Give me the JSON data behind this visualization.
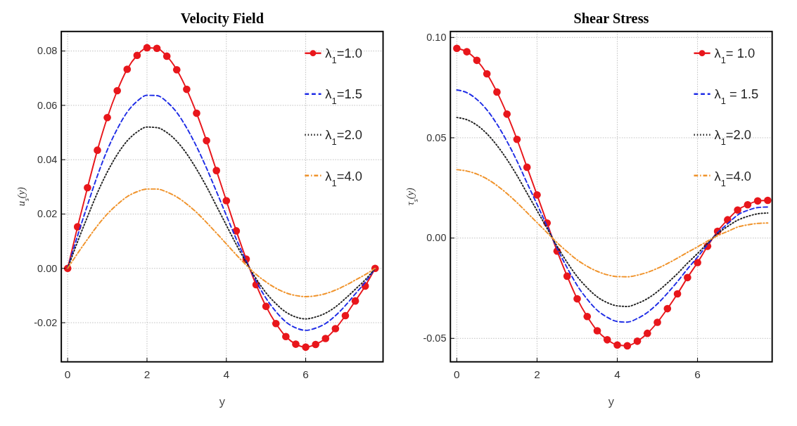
{
  "chart_data": [
    {
      "type": "line",
      "title": "Velocity Field",
      "xlabel": "y",
      "ylabel": "u$_{s}$(y)",
      "xlim": [
        -0.16,
        7.95
      ],
      "ylim": [
        -0.0344,
        0.0872
      ],
      "xticks": [
        0,
        2,
        4,
        6
      ],
      "yticks": [
        {
          "value": -0.02,
          "label": "-0.02"
        },
        {
          "value": 0,
          "label": "0.00"
        },
        {
          "value": 0.02,
          "label": "0.02"
        },
        {
          "value": 0.04,
          "label": "0.04"
        },
        {
          "value": 0.06,
          "label": "0.06"
        },
        {
          "value": 0.08,
          "label": "0.08"
        }
      ],
      "grid": true,
      "legend": "top right",
      "x": [
        0,
        0.25,
        0.5,
        0.75,
        1,
        1.25,
        1.5,
        1.75,
        2,
        2.25,
        2.5,
        2.75,
        3,
        3.25,
        3.5,
        3.75,
        4,
        4.25,
        4.5,
        4.75,
        5,
        5.25,
        5.5,
        5.75,
        6,
        6.25,
        6.5,
        6.75,
        7,
        7.25,
        7.5,
        7.75
      ],
      "series": [
        {
          "name": "λ$_{1}$=1.0",
          "color": "#e8161b",
          "marker": "circle",
          "line_style": "solid",
          "values": [
            0,
            0.0153,
            0.0297,
            0.0435,
            0.0555,
            0.0654,
            0.0733,
            0.0784,
            0.0812,
            0.081,
            0.0781,
            0.0731,
            0.0659,
            0.0571,
            0.047,
            0.036,
            0.0249,
            0.0138,
            0.0034,
            -0.006,
            -0.014,
            -0.0203,
            -0.0251,
            -0.0279,
            -0.029,
            -0.028,
            -0.0258,
            -0.0222,
            -0.0174,
            -0.012,
            -0.0065,
            0
          ]
        },
        {
          "name": "λ$_{1}$=1.5",
          "color": "#1f2de6",
          "marker": "none",
          "line_style": "dashed",
          "values": [
            0,
            0.012,
            0.0233,
            0.0341,
            0.0436,
            0.0513,
            0.0575,
            0.0615,
            0.0637,
            0.0636,
            0.0613,
            0.0574,
            0.0517,
            0.0448,
            0.0369,
            0.0283,
            0.0195,
            0.0108,
            0.0027,
            -0.0047,
            -0.011,
            -0.0159,
            -0.0197,
            -0.0219,
            -0.0228,
            -0.022,
            -0.0203,
            -0.0174,
            -0.0137,
            -0.0094,
            -0.0051,
            0
          ]
        },
        {
          "name": "λ$_{1}$=2.0",
          "color": "#222222",
          "marker": "none",
          "line_style": "dotted",
          "values": [
            0,
            0.0098,
            0.019,
            0.0278,
            0.0355,
            0.0419,
            0.0469,
            0.0502,
            0.052,
            0.0518,
            0.05,
            0.0468,
            0.0422,
            0.0365,
            0.0301,
            0.023,
            0.0159,
            0.0088,
            0.0022,
            -0.0038,
            -0.009,
            -0.013,
            -0.0161,
            -0.0179,
            -0.0186,
            -0.0179,
            -0.0165,
            -0.0142,
            -0.0111,
            -0.0077,
            -0.0042,
            0
          ]
        },
        {
          "name": "λ$_{1}$=4.0",
          "color": "#f0932b",
          "marker": "none",
          "line_style": "dashdot",
          "values": [
            0,
            0.0055,
            0.0107,
            0.0157,
            0.02,
            0.0235,
            0.0264,
            0.0282,
            0.0292,
            0.0292,
            0.0281,
            0.0263,
            0.0237,
            0.0206,
            0.0169,
            0.013,
            0.009,
            0.005,
            0.0012,
            -0.0022,
            -0.005,
            -0.0073,
            -0.009,
            -0.01,
            -0.0104,
            -0.0101,
            -0.0093,
            -0.008,
            -0.0063,
            -0.0043,
            -0.0023,
            0
          ]
        }
      ]
    },
    {
      "type": "line",
      "title": "Shear Stress",
      "xlabel": "y",
      "ylabel": "τ$_{s}$(y)",
      "xlim": [
        -0.16,
        7.86
      ],
      "ylim": [
        -0.0617,
        0.103
      ],
      "xticks": [
        0,
        2,
        4,
        6
      ],
      "yticks": [
        {
          "value": -0.05,
          "label": "-0.05"
        },
        {
          "value": 0,
          "label": "0.00"
        },
        {
          "value": 0.05,
          "label": "0.05"
        },
        {
          "value": 0.1,
          "label": "0.10"
        }
      ],
      "grid": true,
      "legend": "top right",
      "x": [
        0,
        0.25,
        0.5,
        0.75,
        1,
        1.25,
        1.5,
        1.75,
        2,
        2.25,
        2.5,
        2.75,
        3,
        3.25,
        3.5,
        3.75,
        4,
        4.25,
        4.5,
        4.75,
        5,
        5.25,
        5.5,
        5.75,
        6,
        6.25,
        6.5,
        6.75,
        7,
        7.25,
        7.5,
        7.75
      ],
      "series": [
        {
          "name": "λ$_{1}$= 1.0",
          "color": "#e8161b",
          "marker": "circle",
          "line_style": "solid",
          "values": [
            0.0946,
            0.0929,
            0.0886,
            0.0819,
            0.0728,
            0.0618,
            0.0492,
            0.0353,
            0.0215,
            0.0075,
            -0.0065,
            -0.019,
            -0.0303,
            -0.0391,
            -0.0462,
            -0.0507,
            -0.0533,
            -0.0537,
            -0.0514,
            -0.0475,
            -0.042,
            -0.0352,
            -0.0278,
            -0.0197,
            -0.0122,
            -0.0041,
            0.0034,
            0.0091,
            0.014,
            0.0166,
            0.0185,
            0.0188
          ]
        },
        {
          "name": "λ$_{1}$ = 1.5",
          "color": "#1f2de6",
          "marker": "none",
          "line_style": "dashed",
          "values": [
            0.0738,
            0.0725,
            0.0691,
            0.0639,
            0.0568,
            0.0482,
            0.0384,
            0.0275,
            0.0168,
            0.0059,
            -0.0051,
            -0.0148,
            -0.0236,
            -0.0305,
            -0.036,
            -0.0395,
            -0.0416,
            -0.0419,
            -0.0401,
            -0.0371,
            -0.0328,
            -0.0275,
            -0.0217,
            -0.0154,
            -0.0095,
            -0.0032,
            0.0027,
            0.0071,
            0.0115,
            0.0138,
            0.0152,
            0.0155
          ]
        },
        {
          "name": "λ$_{1}$=2.0",
          "color": "#222222",
          "marker": "none",
          "line_style": "dotted",
          "values": [
            0.0601,
            0.059,
            0.0563,
            0.052,
            0.0462,
            0.0392,
            0.0312,
            0.0224,
            0.0137,
            0.0048,
            -0.0041,
            -0.0121,
            -0.0192,
            -0.0248,
            -0.0293,
            -0.0322,
            -0.0338,
            -0.0341,
            -0.0326,
            -0.0302,
            -0.0267,
            -0.0224,
            -0.0177,
            -0.0125,
            -0.0077,
            -0.0026,
            0.0022,
            0.0058,
            0.0089,
            0.0108,
            0.0121,
            0.0125
          ]
        },
        {
          "name": "λ$_{1}$=4.0",
          "color": "#f0932b",
          "marker": "none",
          "line_style": "dashdot",
          "values": [
            0.0341,
            0.0334,
            0.0319,
            0.0295,
            0.0262,
            0.0222,
            0.0177,
            0.0127,
            0.0077,
            0.0027,
            -0.0023,
            -0.0068,
            -0.0109,
            -0.0141,
            -0.0166,
            -0.0183,
            -0.0192,
            -0.0193,
            -0.0185,
            -0.0171,
            -0.0151,
            -0.0127,
            -0.01,
            -0.0071,
            -0.0044,
            -0.0015,
            0.0012,
            0.0033,
            0.0055,
            0.0066,
            0.0073,
            0.0075
          ]
        }
      ]
    }
  ]
}
